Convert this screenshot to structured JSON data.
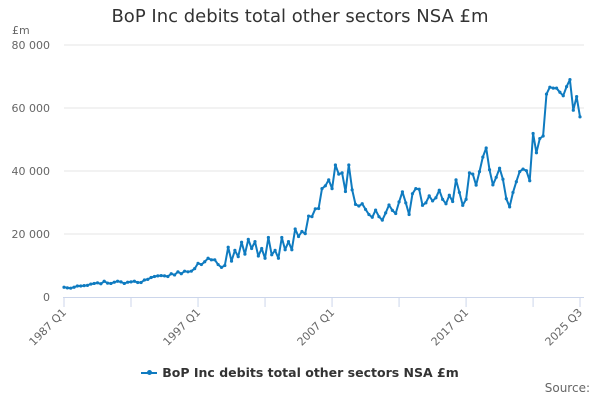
{
  "chart_data": {
    "type": "line",
    "title": "BoP Inc debits total other sectors NSA £m",
    "ylabel": "£m",
    "xlabel": "",
    "ylim": [
      0,
      80000
    ],
    "yticks": [
      0,
      20000,
      40000,
      60000,
      80000
    ],
    "ytick_labels": [
      "0",
      "20 000",
      "40 000",
      "60 000",
      "80 000"
    ],
    "x_start": {
      "year": 1987,
      "quarter": 1
    },
    "x_end": "2025 Q3",
    "xtick_labels": [
      {
        "label": "1987 Q1",
        "index": 0
      },
      {
        "label": "1997 Q1",
        "index": 40
      },
      {
        "label": "2007 Q1",
        "index": 80
      },
      {
        "label": "2017 Q1",
        "index": 120
      },
      {
        "label": "2025 Q3",
        "index": 154
      }
    ],
    "grid": true,
    "legend_position": "bottom-center",
    "series": [
      {
        "name": "BoP Inc debits total other sectors NSA £m",
        "color": "#0f7bc0",
        "values": [
          3100,
          2900,
          2800,
          3100,
          3500,
          3500,
          3600,
          3700,
          4100,
          4300,
          4500,
          4200,
          5000,
          4400,
          4300,
          4700,
          5000,
          4800,
          4300,
          4700,
          4800,
          5000,
          4600,
          4600,
          5400,
          5600,
          6200,
          6500,
          6700,
          6800,
          6700,
          6500,
          7400,
          7000,
          8000,
          7400,
          8200,
          8000,
          8200,
          9000,
          10700,
          10300,
          11200,
          12300,
          11800,
          11800,
          10300,
          9400,
          10000,
          15800,
          11400,
          14800,
          12800,
          17400,
          13600,
          18300,
          15400,
          17600,
          13000,
          15400,
          12300,
          18900,
          13400,
          14800,
          12300,
          18900,
          15000,
          17600,
          15000,
          21600,
          19200,
          20800,
          20100,
          25700,
          25500,
          28000,
          28100,
          34400,
          35300,
          37200,
          34400,
          41900,
          39000,
          39400,
          33500,
          41900,
          34000,
          29400,
          28900,
          29600,
          27800,
          26200,
          25300,
          27600,
          25500,
          24400,
          26700,
          29200,
          27500,
          26500,
          30200,
          33400,
          29900,
          26200,
          32800,
          34400,
          34200,
          29100,
          29900,
          32100,
          30500,
          31500,
          33900,
          31000,
          29600,
          32300,
          30300,
          37200,
          33200,
          29100,
          31000,
          39400,
          39000,
          35500,
          39800,
          44400,
          47300,
          40400,
          35600,
          38000,
          40900,
          37400,
          31200,
          28600,
          33200,
          36600,
          39800,
          40600,
          40100,
          36900,
          51900,
          45800,
          50300,
          51100,
          64400,
          66600,
          66300,
          66300,
          65000,
          63900,
          66800,
          69000,
          59300,
          63600,
          57200
        ]
      }
    ]
  },
  "source_label": "Source:"
}
